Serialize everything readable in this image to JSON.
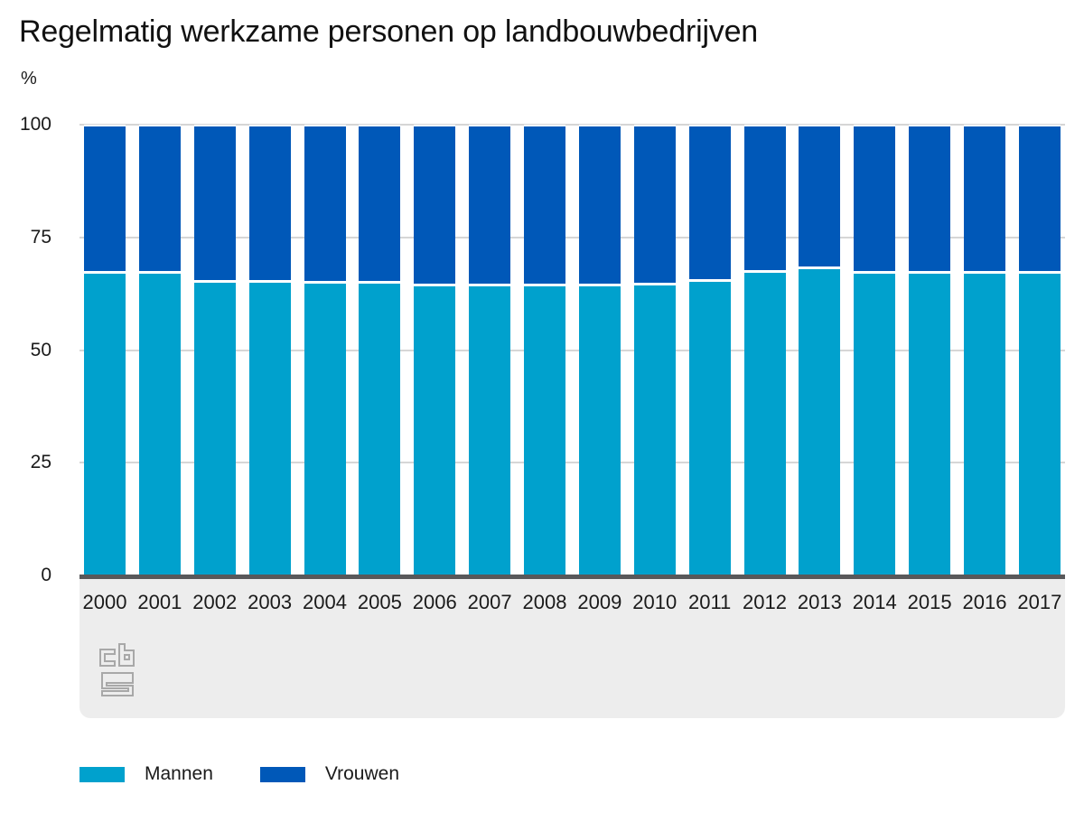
{
  "header": {
    "title": "Regelmatig werkzame personen op landbouwbedrijven",
    "unit": "%"
  },
  "colors": {
    "mannen": "#00a1cd",
    "vrouwen": "#0058b8",
    "axis_line": "#58585a",
    "gridline": "#d6d6d6",
    "footer_bg": "#ededed",
    "text": "#1a1a1a",
    "logo": "#a8a8a8"
  },
  "chart_data": {
    "type": "bar",
    "stacked": true,
    "stack_total": 100,
    "title": "Regelmatig werkzame personen op landbouwbedrijven",
    "xlabel": "",
    "ylabel": "%",
    "ylim": [
      0,
      100
    ],
    "yticks": [
      0,
      25,
      50,
      75,
      100
    ],
    "grid": true,
    "legend_position": "bottom",
    "categories": [
      "2000",
      "2001",
      "2002",
      "2003",
      "2004",
      "2005",
      "2006",
      "2007",
      "2008",
      "2009",
      "2010",
      "2011",
      "2012",
      "2013",
      "2014",
      "2015",
      "2016",
      "2017"
    ],
    "series": [
      {
        "name": "Mannen",
        "color": "#00a1cd",
        "values": [
          66.9,
          66.9,
          64.9,
          64.9,
          64.7,
          64.7,
          64.1,
          64.1,
          64.1,
          64.1,
          64.3,
          65.1,
          67.1,
          67.9,
          66.9,
          66.9,
          66.9,
          66.9
        ]
      },
      {
        "name": "Vrouwen",
        "color": "#0058b8",
        "values": [
          33.1,
          33.1,
          35.1,
          35.1,
          35.3,
          35.3,
          35.9,
          35.9,
          35.9,
          35.9,
          35.7,
          34.9,
          32.9,
          32.1,
          33.1,
          33.1,
          33.1,
          33.1
        ]
      }
    ],
    "source_logo": "cbs"
  },
  "legend": {
    "items": [
      {
        "label": "Mannen",
        "color": "#00a1cd"
      },
      {
        "label": "Vrouwen",
        "color": "#0058b8"
      }
    ]
  }
}
